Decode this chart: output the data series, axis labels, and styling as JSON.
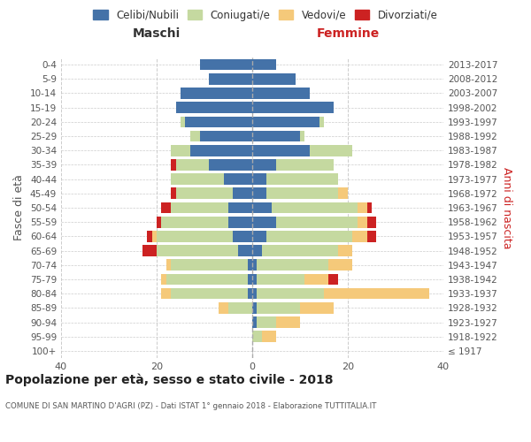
{
  "age_groups": [
    "100+",
    "95-99",
    "90-94",
    "85-89",
    "80-84",
    "75-79",
    "70-74",
    "65-69",
    "60-64",
    "55-59",
    "50-54",
    "45-49",
    "40-44",
    "35-39",
    "30-34",
    "25-29",
    "20-24",
    "15-19",
    "10-14",
    "5-9",
    "0-4"
  ],
  "birth_years": [
    "≤ 1917",
    "1918-1922",
    "1923-1927",
    "1928-1932",
    "1933-1937",
    "1938-1942",
    "1943-1947",
    "1948-1952",
    "1953-1957",
    "1958-1962",
    "1963-1967",
    "1968-1972",
    "1973-1977",
    "1978-1982",
    "1983-1987",
    "1988-1992",
    "1993-1997",
    "1998-2002",
    "2003-2007",
    "2008-2012",
    "2013-2017"
  ],
  "colors": {
    "celibi": "#4472a8",
    "coniugati": "#c5d9a0",
    "vedovi": "#f5c97a",
    "divorziati": "#cc2222"
  },
  "maschi": {
    "celibi": [
      0,
      0,
      0,
      0,
      1,
      1,
      1,
      3,
      4,
      5,
      5,
      4,
      6,
      9,
      13,
      11,
      14,
      16,
      15,
      9,
      11
    ],
    "coniugati": [
      0,
      0,
      0,
      5,
      16,
      17,
      16,
      17,
      16,
      14,
      12,
      12,
      11,
      7,
      4,
      2,
      1,
      0,
      0,
      0,
      0
    ],
    "vedovi": [
      0,
      0,
      0,
      2,
      2,
      1,
      1,
      0,
      1,
      0,
      0,
      0,
      0,
      0,
      0,
      0,
      0,
      0,
      0,
      0,
      0
    ],
    "divorziati": [
      0,
      0,
      0,
      0,
      0,
      0,
      0,
      3,
      1,
      1,
      2,
      1,
      0,
      1,
      0,
      0,
      0,
      0,
      0,
      0,
      0
    ]
  },
  "femmine": {
    "celibi": [
      0,
      0,
      1,
      1,
      1,
      1,
      1,
      2,
      3,
      5,
      4,
      3,
      3,
      5,
      12,
      10,
      14,
      17,
      12,
      9,
      5
    ],
    "coniugati": [
      0,
      2,
      4,
      9,
      14,
      10,
      15,
      16,
      18,
      17,
      18,
      15,
      15,
      12,
      9,
      1,
      1,
      0,
      0,
      0,
      0
    ],
    "vedovi": [
      0,
      3,
      5,
      7,
      22,
      5,
      5,
      3,
      3,
      2,
      2,
      2,
      0,
      0,
      0,
      0,
      0,
      0,
      0,
      0,
      0
    ],
    "divorziati": [
      0,
      0,
      0,
      0,
      0,
      2,
      0,
      0,
      2,
      2,
      1,
      0,
      0,
      0,
      0,
      0,
      0,
      0,
      0,
      0,
      0
    ]
  },
  "xlim": 40,
  "title": "Popolazione per età, sesso e stato civile - 2018",
  "subtitle": "COMUNE DI SAN MARTINO D'AGRI (PZ) - Dati ISTAT 1° gennaio 2018 - Elaborazione TUTTITALIA.IT",
  "xlabel_left": "Maschi",
  "xlabel_right": "Femmine",
  "ylabel_left": "Fasce di età",
  "ylabel_right": "Anni di nascita",
  "legend_labels": [
    "Celibi/Nubili",
    "Coniugati/e",
    "Vedovi/e",
    "Divorziati/e"
  ],
  "bg_color": "#ffffff",
  "grid_color": "#cccccc"
}
